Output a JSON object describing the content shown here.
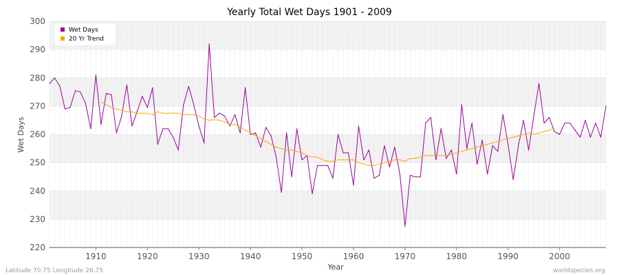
{
  "chart_data": {
    "type": "line",
    "title": "Yearly Total Wet Days 1901 - 2009",
    "xlabel": "Year",
    "ylabel": "Wet Days",
    "xlim": [
      1901,
      2009
    ],
    "ylim": [
      220,
      300
    ],
    "x_ticks": [
      1910,
      1920,
      1930,
      1940,
      1950,
      1960,
      1970,
      1980,
      1990,
      2000
    ],
    "y_ticks": [
      220,
      230,
      240,
      250,
      260,
      270,
      280,
      290,
      300
    ],
    "grid": true,
    "legend_position": "top-left",
    "series": [
      {
        "name": "Wet Days",
        "color": "#990099",
        "x": [
          1901,
          1902,
          1903,
          1904,
          1905,
          1906,
          1907,
          1908,
          1909,
          1910,
          1911,
          1912,
          1913,
          1914,
          1915,
          1916,
          1917,
          1918,
          1919,
          1920,
          1921,
          1922,
          1923,
          1924,
          1925,
          1926,
          1927,
          1928,
          1929,
          1930,
          1931,
          1932,
          1933,
          1934,
          1935,
          1936,
          1937,
          1938,
          1939,
          1940,
          1941,
          1942,
          1943,
          1944,
          1945,
          1946,
          1947,
          1948,
          1949,
          1950,
          1951,
          1952,
          1953,
          1954,
          1955,
          1956,
          1957,
          1958,
          1959,
          1960,
          1961,
          1962,
          1963,
          1964,
          1965,
          1966,
          1967,
          1968,
          1969,
          1970,
          1971,
          1972,
          1973,
          1974,
          1975,
          1976,
          1977,
          1978,
          1979,
          1980,
          1981,
          1982,
          1983,
          1984,
          1985,
          1986,
          1987,
          1988,
          1989,
          1990,
          1991,
          1992,
          1993,
          1994,
          1995,
          1996,
          1997,
          1998,
          1999,
          2000,
          2001,
          2002,
          2003,
          2004,
          2005,
          2006,
          2007,
          2008,
          2009
        ],
        "values": [
          278,
          280,
          277,
          269,
          269.5,
          275.5,
          275,
          271,
          262,
          281,
          263.5,
          274.5,
          274,
          260.5,
          266.5,
          277.5,
          263,
          268,
          273.5,
          269.5,
          276.5,
          256.5,
          262,
          262,
          259,
          254.5,
          270.5,
          277,
          270.5,
          263,
          257,
          292,
          266,
          267.5,
          266.5,
          263,
          267,
          260.5,
          276.5,
          260,
          260.5,
          255.5,
          262.5,
          259.5,
          252,
          239.5,
          260.5,
          245,
          262,
          251,
          252.5,
          239,
          249,
          249,
          249,
          244.5,
          260,
          253.5,
          253.5,
          242,
          263,
          251,
          254.5,
          244.5,
          245.5,
          256,
          248.5,
          255.5,
          246,
          227.5,
          245.5,
          245,
          245,
          264,
          266,
          251,
          262,
          251.5,
          254.5,
          246,
          270.5,
          255,
          264,
          249.5,
          258,
          246,
          256,
          254,
          267,
          256.5,
          244,
          256,
          265,
          254.5,
          266.5,
          278,
          264,
          266,
          261,
          260,
          264,
          264,
          261.5,
          259,
          265,
          259,
          264,
          259,
          270
        ]
      },
      {
        "name": "20 Yr Trend",
        "color": "#ffa500",
        "x": [
          1911,
          1912,
          1913,
          1914,
          1915,
          1916,
          1917,
          1918,
          1919,
          1920,
          1921,
          1922,
          1923,
          1924,
          1925,
          1926,
          1927,
          1928,
          1929,
          1930,
          1931,
          1932,
          1933,
          1934,
          1935,
          1936,
          1937,
          1938,
          1939,
          1940,
          1941,
          1942,
          1943,
          1944,
          1945,
          1946,
          1947,
          1948,
          1949,
          1950,
          1951,
          1952,
          1953,
          1954,
          1955,
          1956,
          1957,
          1958,
          1959,
          1960,
          1961,
          1962,
          1963,
          1964,
          1965,
          1966,
          1967,
          1968,
          1969,
          1970,
          1971,
          1972,
          1973,
          1974,
          1975,
          1976,
          1977,
          1978,
          1979,
          1980,
          1981,
          1982,
          1983,
          1984,
          1985,
          1986,
          1987,
          1988,
          1989,
          1990,
          1991,
          1992,
          1993,
          1994,
          1995,
          1996,
          1997,
          1998,
          1999
        ],
        "values": [
          271.5,
          270.5,
          269.5,
          269,
          268.5,
          268,
          268,
          267.5,
          267.5,
          267.5,
          267,
          268,
          267.5,
          267.5,
          267.5,
          267.5,
          267,
          267,
          267,
          266.5,
          265.5,
          265,
          265.2,
          265,
          264.5,
          263.5,
          263.5,
          262.5,
          261.5,
          260.5,
          259.5,
          258.5,
          257.5,
          256.5,
          255.5,
          255,
          254.5,
          254.5,
          254,
          253.5,
          252.5,
          252,
          252,
          251,
          250.5,
          250.5,
          251,
          251,
          251,
          251,
          250,
          249.5,
          249,
          249,
          249.5,
          250,
          250.5,
          251,
          251,
          250.5,
          251.5,
          251.5,
          252,
          252.5,
          252.5,
          252.5,
          252.5,
          252.5,
          253,
          253.5,
          254,
          254.5,
          255,
          255.5,
          256,
          256.5,
          257,
          257.5,
          258,
          258.5,
          259,
          259.5,
          260,
          260.5,
          260,
          260.5,
          261,
          261.5,
          262
        ]
      }
    ]
  },
  "footer": {
    "left": "Latitude 70.75 Longitude 26.75",
    "right": "worldspecies.org"
  }
}
